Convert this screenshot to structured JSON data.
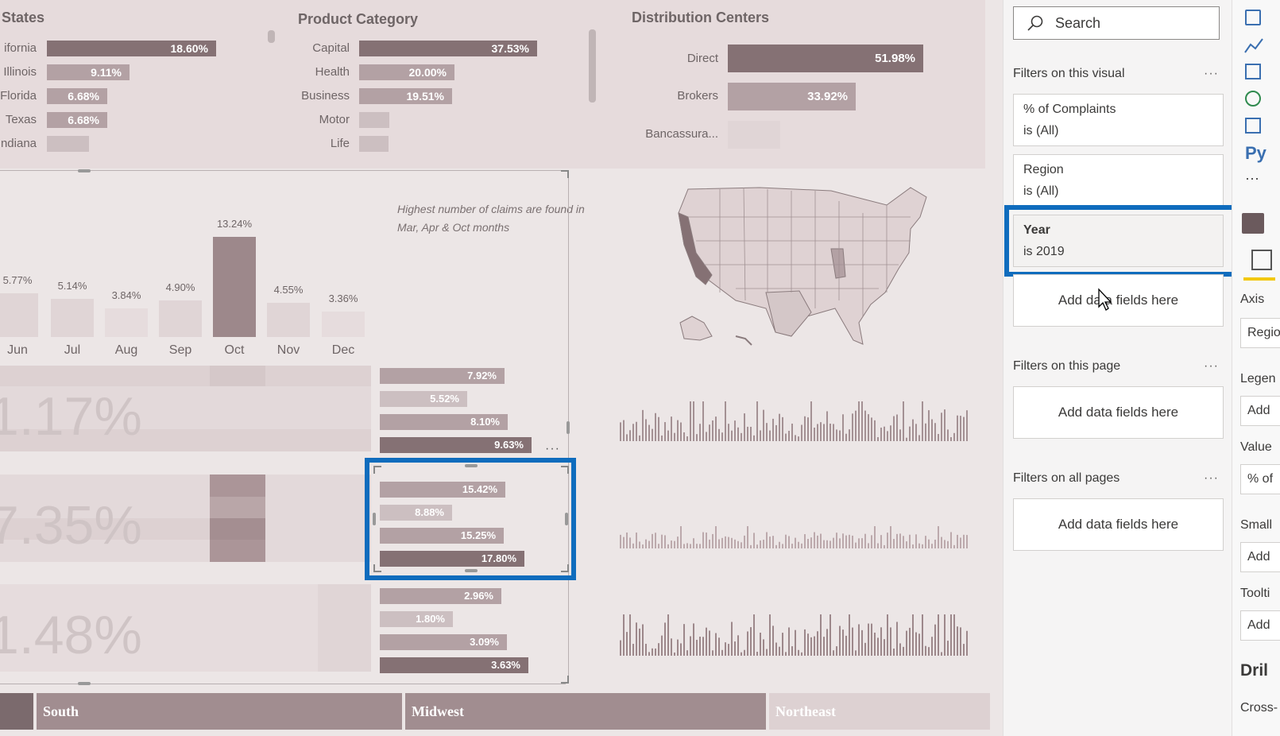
{
  "states": {
    "title": "States",
    "items": [
      {
        "label": "ifornia",
        "value": "18.60%"
      },
      {
        "label": "Illinois",
        "value": "9.11%"
      },
      {
        "label": "Florida",
        "value": "6.68%"
      },
      {
        "label": "Texas",
        "value": "6.68%"
      },
      {
        "label": "ndiana",
        "value": ""
      }
    ]
  },
  "product_category": {
    "title": "Product Category",
    "items": [
      {
        "label": "Capital",
        "value": "37.53%"
      },
      {
        "label": "Health",
        "value": "20.00%"
      },
      {
        "label": "Business",
        "value": "19.51%"
      },
      {
        "label": "Motor",
        "value": ""
      },
      {
        "label": "Life",
        "value": ""
      }
    ]
  },
  "distribution_centers": {
    "title": "Distribution Centers",
    "items": [
      {
        "label": "Direct",
        "value": "51.98%"
      },
      {
        "label": "Brokers",
        "value": "33.92%"
      },
      {
        "label": "Bancassura...",
        "value": ""
      }
    ]
  },
  "monthly": {
    "annotation_line1": "Highest number of claims are found in",
    "annotation_line2": "Mar, Apr & Oct months",
    "months": [
      "Jun",
      "Jul",
      "Aug",
      "Sep",
      "Oct",
      "Nov",
      "Dec"
    ],
    "values": [
      "5.77%",
      "5.14%",
      "3.84%",
      "4.90%",
      "13.24%",
      "4.55%",
      "3.36%"
    ]
  },
  "matrix": {
    "big_values": [
      "1.17%",
      "7.35%",
      "1.48%"
    ]
  },
  "region_bars": {
    "group1": [
      "7.92%",
      "5.52%",
      "8.10%",
      "9.63%"
    ],
    "group2": [
      "15.42%",
      "8.88%",
      "15.25%",
      "17.80%"
    ],
    "group3": [
      "2.96%",
      "1.80%",
      "3.09%",
      "3.63%"
    ]
  },
  "regions": [
    "South",
    "Midwest",
    "Northeast"
  ],
  "filter_pane": {
    "search_placeholder": "Search",
    "visual_section": "Filters on this visual",
    "filters": [
      {
        "name": "% of Complaints",
        "state": "is (All)"
      },
      {
        "name": "Region",
        "state": "is (All)"
      },
      {
        "name": "Year",
        "state": "is 2019"
      }
    ],
    "add_fields": "Add data fields here",
    "page_section": "Filters on this page",
    "all_pages_section": "Filters on all pages",
    "more": "···"
  },
  "viz_pane": {
    "py_label": "Py",
    "more": "···",
    "axis": "Axis",
    "axis_value": "Regio",
    "legend": "Legen",
    "legend_value": "Add",
    "values": "Value",
    "values_value": "% of",
    "small": "Small",
    "small_value": "Add",
    "tooltips": "Toolti",
    "tooltips_value": "Add",
    "drill": "Dril",
    "cross": "Cross-"
  },
  "colors": {
    "dark": "#857174",
    "mid": "#b3a1a4",
    "light": "#ccbfc1",
    "highlight": "#0f6cbd"
  }
}
